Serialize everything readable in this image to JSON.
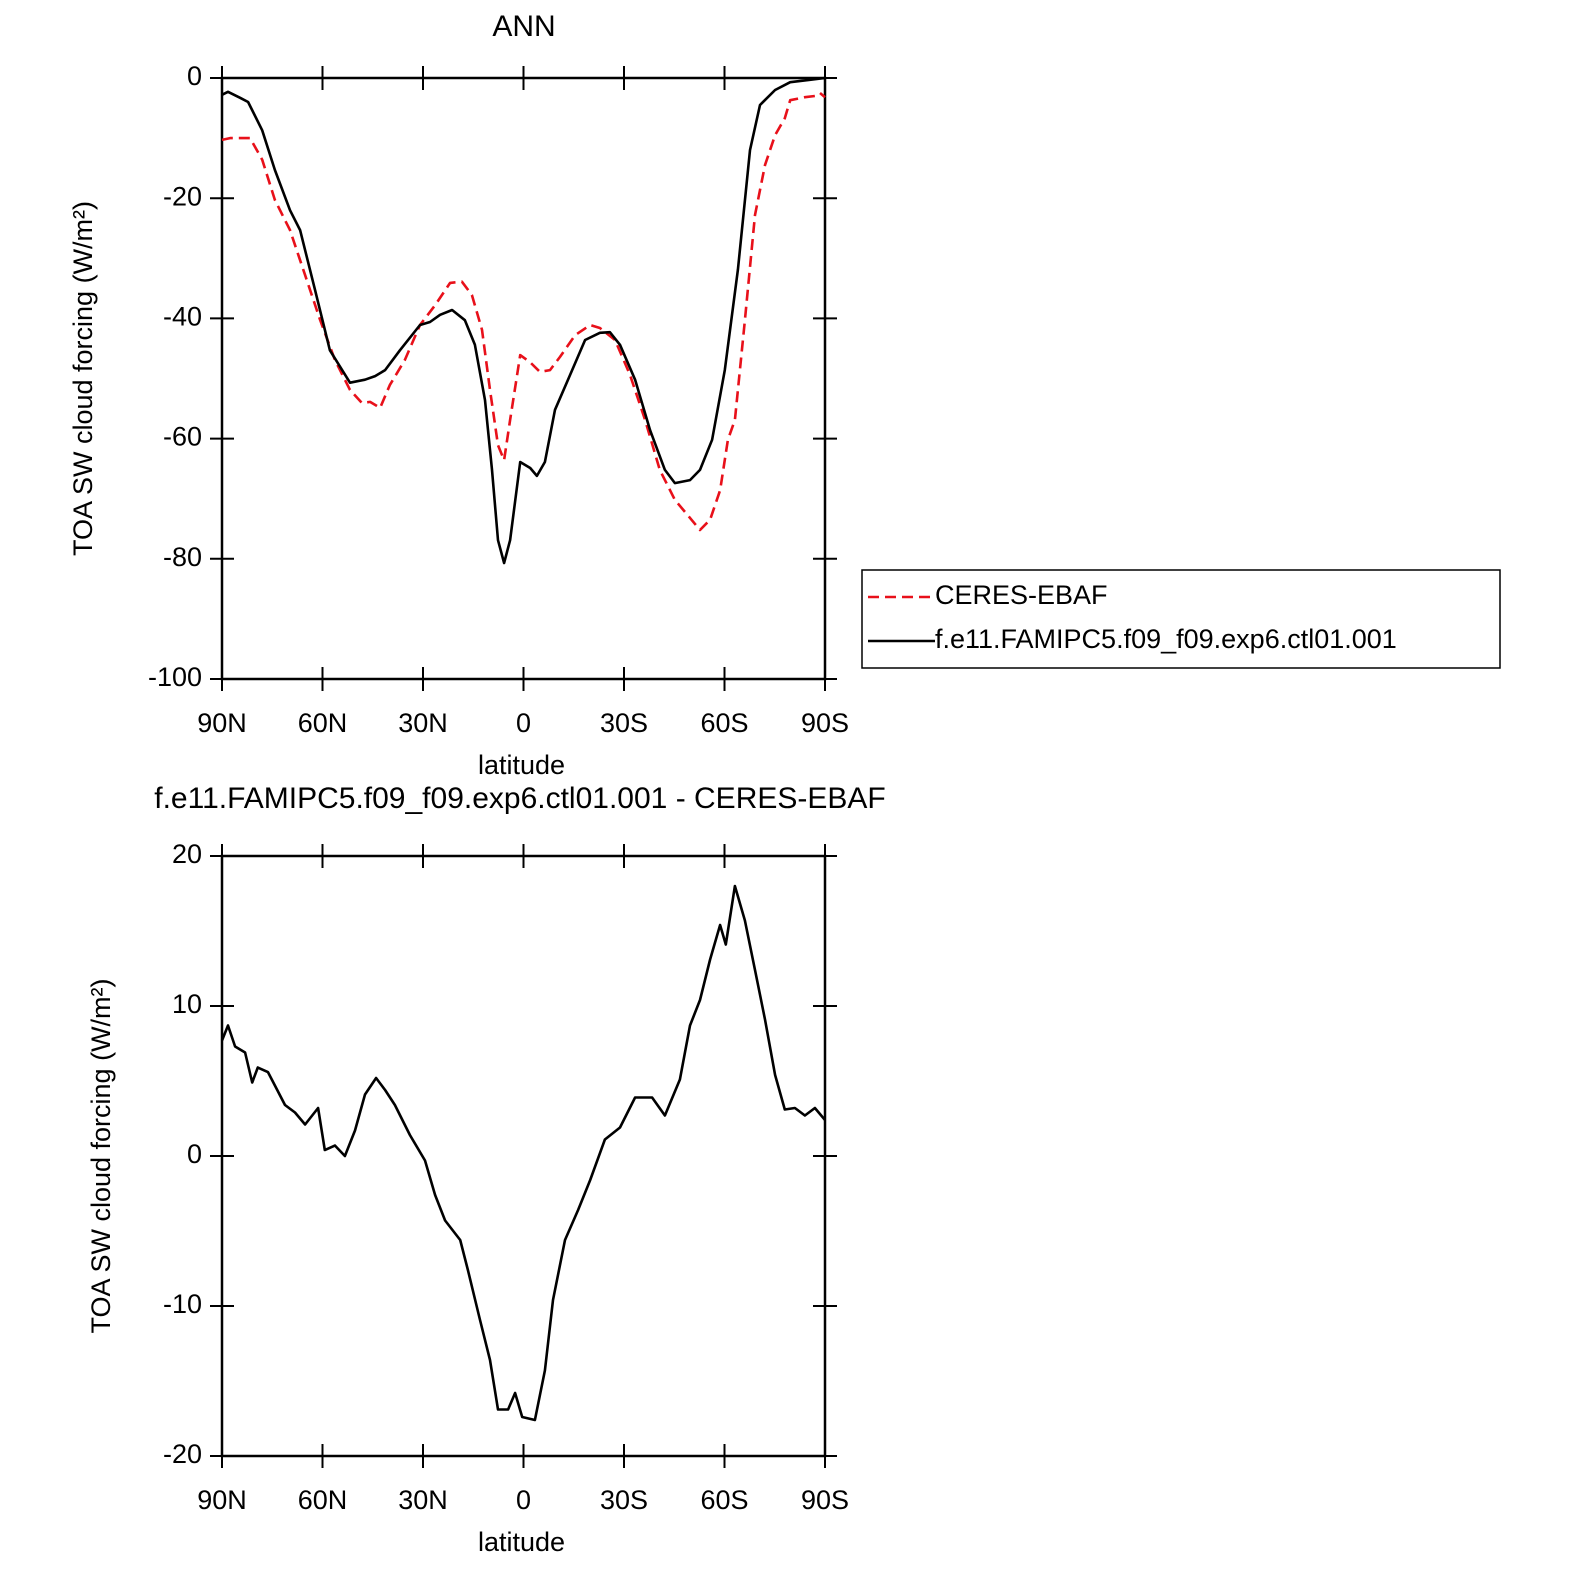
{
  "chart_data": [
    {
      "type": "line",
      "title": "ANN",
      "xlabel": "latitude",
      "ylabel": "TOA SW cloud forcing (W/m²)",
      "xlim": [
        90,
        -90
      ],
      "xticks": [
        {
          "value": 90,
          "label": "90N"
        },
        {
          "value": 60,
          "label": "60N"
        },
        {
          "value": 30,
          "label": "30N"
        },
        0,
        {
          "value": -30,
          "label": "30S"
        },
        {
          "value": -60,
          "label": "60S"
        },
        {
          "value": -90,
          "label": "90S"
        }
      ],
      "ylim": [
        -100,
        0
      ],
      "yticks": [
        0,
        -20,
        -40,
        -60,
        -80,
        -100
      ],
      "legend": "right",
      "series": [
        {
          "name": "CERES-EBAF",
          "color": "#e8101a",
          "dash": true,
          "x": [
            90,
            87.6,
            81.6,
            78,
            74.2,
            69.7,
            65.2,
            60.7,
            56.3,
            51.8,
            48.2,
            45.8,
            42.8,
            39.9,
            35.4,
            30.9,
            26.4,
            21.9,
            18.4,
            15.4,
            12.4,
            10,
            7.6,
            5.8,
            4,
            1,
            -2,
            -4.9,
            -7.9,
            -10.9,
            -15.4,
            -19.9,
            -22.8,
            -27.3,
            -31.8,
            -36.3,
            -40.7,
            -45.2,
            -49.7,
            -52.7,
            -55.7,
            -58.7,
            -61,
            -63.1,
            -66.1,
            -69.1,
            -72.1,
            -75.1,
            -78,
            -79.6,
            -84,
            -87,
            -88.5,
            -90
          ],
          "values": [
            -10.3,
            -10,
            -10,
            -13.6,
            -20.3,
            -25.3,
            -32.8,
            -40.3,
            -46.9,
            -51.9,
            -54.1,
            -53.9,
            -54.9,
            -51.1,
            -46.9,
            -41.1,
            -37.8,
            -34.1,
            -33.9,
            -36.1,
            -41.9,
            -51.9,
            -61.1,
            -63.6,
            -56.9,
            -46.1,
            -47.3,
            -48.9,
            -48.6,
            -46.4,
            -42.8,
            -41.1,
            -41.6,
            -43.6,
            -49.4,
            -56.9,
            -65.2,
            -70.2,
            -73.2,
            -75.2,
            -73.5,
            -68.6,
            -60.2,
            -56.9,
            -40.3,
            -22.8,
            -14.5,
            -9.5,
            -6.7,
            -3.7,
            -3.2,
            -3,
            -2.5,
            -3.2
          ]
        },
        {
          "name": "f.e11.FAMIPC5.f09_f09.exp6.ctl01.001",
          "color": "#000000",
          "dash": false,
          "x": [
            90,
            88.2,
            84.6,
            82.2,
            78,
            74.2,
            69.7,
            66.7,
            62.2,
            57.8,
            51.8,
            47.3,
            44.3,
            41.3,
            36.9,
            30.9,
            27.9,
            24.9,
            21.3,
            17.5,
            14.5,
            11.5,
            9.4,
            7.6,
            5.8,
            4,
            1,
            -2,
            -4,
            -6.4,
            -9.4,
            -13.9,
            -18.4,
            -22.8,
            -25.8,
            -28.8,
            -33.3,
            -37.8,
            -42.2,
            -45.2,
            -49.7,
            -52.7,
            -56.3,
            -60.1,
            -64,
            -67.6,
            -70.6,
            -75.1,
            -79.6,
            -85.5,
            -90
          ],
          "values": [
            -2.8,
            -2.3,
            -3.3,
            -4,
            -8.7,
            -15.3,
            -22,
            -25.3,
            -35.3,
            -45.3,
            -50.7,
            -50.2,
            -49.6,
            -48.6,
            -45.3,
            -41.1,
            -40.6,
            -39.4,
            -38.6,
            -40.3,
            -44.4,
            -53.6,
            -65.2,
            -76.9,
            -80.7,
            -76.9,
            -63.9,
            -64.9,
            -66.2,
            -63.9,
            -55.2,
            -49.4,
            -43.6,
            -42.4,
            -42.3,
            -44.4,
            -50.2,
            -58.6,
            -65.2,
            -67.4,
            -66.9,
            -65.2,
            -60.2,
            -48.6,
            -31.9,
            -12,
            -4.5,
            -2,
            -0.7,
            -0.3,
            0
          ]
        }
      ]
    },
    {
      "type": "line",
      "title": "f.e11.FAMIPC5.f09_f09.exp6.ctl01.001 - CERES-EBAF",
      "xlabel": "latitude",
      "ylabel": "TOA SW cloud forcing (W/m²)",
      "xlim": [
        90,
        -90
      ],
      "xticks": [
        {
          "value": 90,
          "label": "90N"
        },
        {
          "value": 60,
          "label": "60N"
        },
        {
          "value": 30,
          "label": "30N"
        },
        0,
        {
          "value": -30,
          "label": "30S"
        },
        {
          "value": -60,
          "label": "60S"
        },
        {
          "value": -90,
          "label": "90S"
        }
      ],
      "ylim": [
        -20,
        20
      ],
      "yticks": [
        20,
        10,
        0,
        -10,
        -20
      ],
      "series": [
        {
          "color": "#000000",
          "dash": false,
          "x": [
            90,
            88.2,
            86.1,
            83.1,
            81,
            79.3,
            76.3,
            74.2,
            71.2,
            68.2,
            65.2,
            61.3,
            59.3,
            56.3,
            53.3,
            50.3,
            47.3,
            44,
            41.3,
            38.4,
            33.9,
            29.4,
            26.4,
            23.4,
            18.9,
            16.6,
            13,
            10,
            7.6,
            4.6,
            2.5,
            0.4,
            -3.4,
            -6.4,
            -8.8,
            -12.4,
            -16.3,
            -19.9,
            -24.3,
            -28.8,
            -33.3,
            -38.4,
            -42.2,
            -46.7,
            -49.7,
            -52.7,
            -55.7,
            -58.7,
            -60.4,
            -63.1,
            -66.1,
            -69.1,
            -72.1,
            -75.1,
            -78,
            -81,
            -84,
            -87,
            -90
          ],
          "values": [
            7.7,
            8.7,
            7.3,
            6.9,
            4.9,
            5.9,
            5.6,
            4.7,
            3.4,
            2.9,
            2.1,
            3.2,
            0.4,
            0.7,
            0,
            1.7,
            4.1,
            5.2,
            4.4,
            3.4,
            1.4,
            -0.3,
            -2.6,
            -4.3,
            -5.6,
            -7.6,
            -10.9,
            -13.6,
            -16.9,
            -16.9,
            -15.8,
            -17.4,
            -17.6,
            -14.3,
            -9.6,
            -5.6,
            -3.6,
            -1.6,
            1.1,
            1.9,
            3.9,
            3.9,
            2.7,
            5.1,
            8.7,
            10.4,
            13.1,
            15.4,
            14.1,
            18,
            15.7,
            12.4,
            9.1,
            5.4,
            3.1,
            3.2,
            2.7,
            3.2,
            2.4
          ]
        }
      ]
    }
  ]
}
